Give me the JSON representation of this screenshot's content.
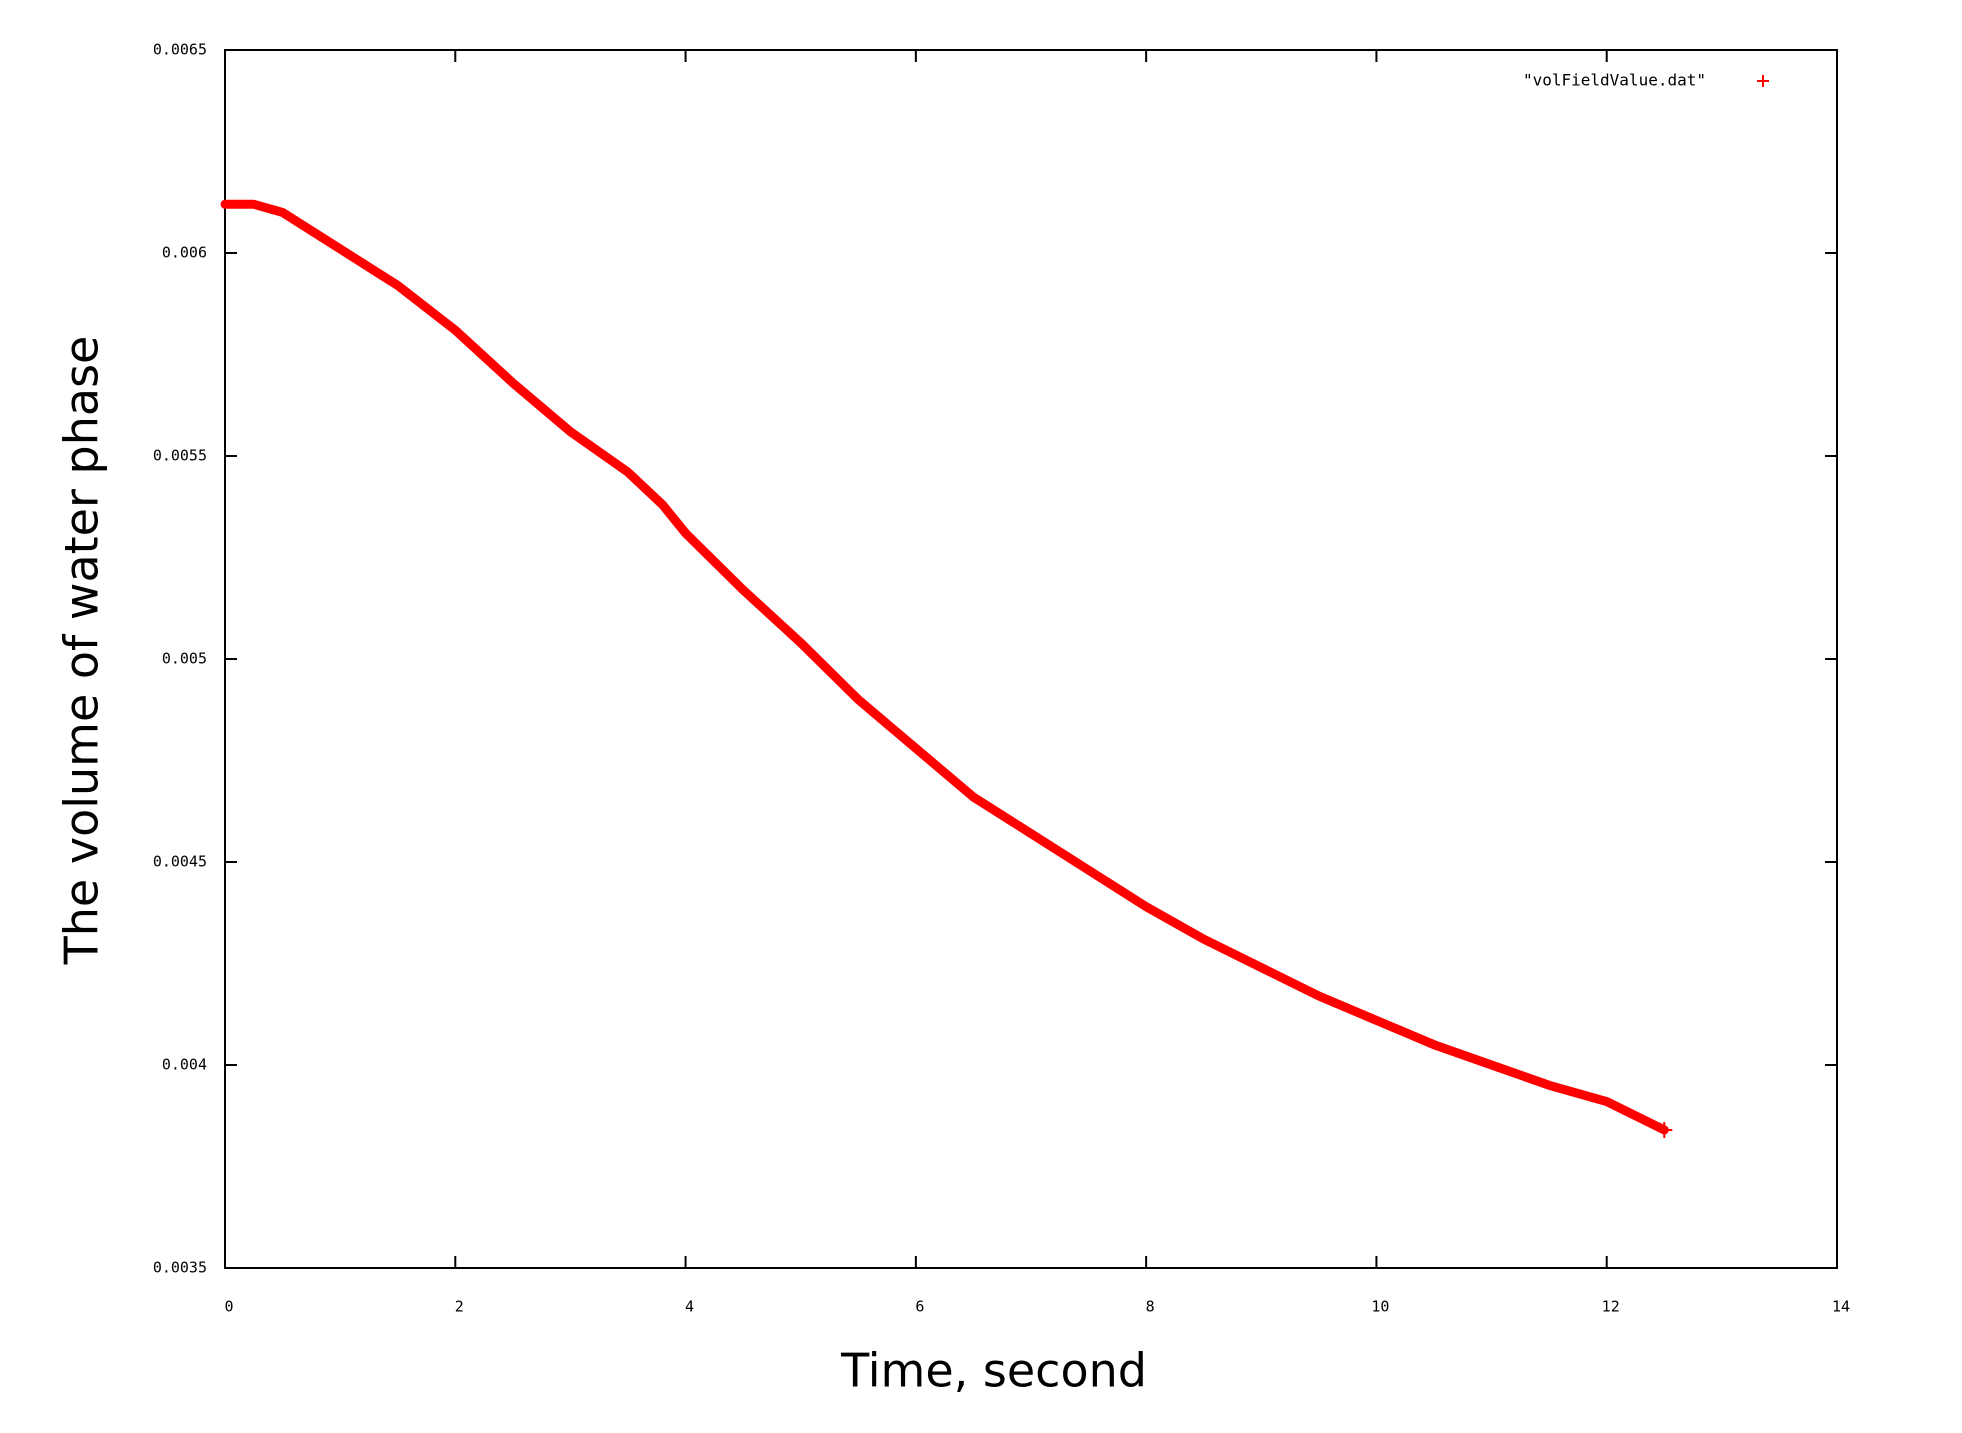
{
  "chart_data": {
    "type": "line",
    "x_label": "Time, second",
    "y_label": "The volume of water phase",
    "series": [
      {
        "name": "\"volFieldValue.dat\"",
        "color": "#ff0000",
        "x": [
          0,
          0.25,
          0.5,
          1,
          1.5,
          2,
          2.5,
          3,
          3.5,
          3.8,
          4,
          4.5,
          5,
          5.5,
          6,
          6.5,
          7,
          7.5,
          8,
          8.5,
          9,
          9.5,
          10,
          10.5,
          11,
          11.5,
          12,
          12.5
        ],
        "values": [
          0.00612,
          0.00612,
          0.0061,
          0.00601,
          0.00592,
          0.00581,
          0.00568,
          0.00556,
          0.00546,
          0.00538,
          0.00531,
          0.00517,
          0.00504,
          0.0049,
          0.00478,
          0.00466,
          0.00457,
          0.00448,
          0.00439,
          0.00431,
          0.00424,
          0.00417,
          0.00411,
          0.00405,
          0.004,
          0.00395,
          0.00391,
          0.00384
        ]
      }
    ],
    "xlim": [
      0,
      14
    ],
    "xticks": [
      0,
      2,
      4,
      6,
      8,
      10,
      12,
      14
    ],
    "ylim": [
      0.0035,
      0.0065
    ],
    "yticks": [
      0.0035,
      0.004,
      0.0045,
      0.005,
      0.0055,
      0.006,
      0.0065
    ],
    "grid": false,
    "legend": "top-right"
  }
}
